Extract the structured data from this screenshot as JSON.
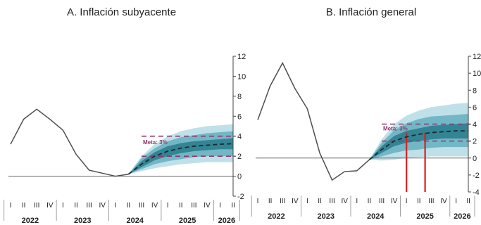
{
  "chart_data": [
    {
      "type": "line",
      "title": "A. Inflación subyacente",
      "y_ticks": [
        12,
        10,
        8,
        6,
        4,
        2,
        0,
        -2
      ],
      "ylim": [
        -2,
        12
      ],
      "quarter_labels": [
        "I",
        "II",
        "III",
        "IV",
        "I",
        "II",
        "III",
        "IV",
        "I",
        "II",
        "III",
        "IV",
        "I",
        "II",
        "III",
        "IV",
        "I",
        "II"
      ],
      "year_labels": [
        "2022",
        "2023",
        "2024",
        "2025",
        "2026"
      ],
      "target_label": "Meta: 3%",
      "target": 3,
      "target_band": [
        2,
        4
      ],
      "history": {
        "x": [
          0,
          1,
          2,
          3,
          4,
          5,
          6,
          7,
          8,
          9
        ],
        "y": [
          3.2,
          5.7,
          6.7,
          5.7,
          4.6,
          2.2,
          0.6,
          0.3,
          0.0,
          0.2
        ]
      },
      "forecast": {
        "x": [
          9,
          10,
          11,
          12,
          13,
          14,
          15,
          16,
          17
        ],
        "y": [
          0.2,
          1.2,
          2.0,
          2.5,
          2.8,
          3.0,
          3.1,
          3.2,
          3.25
        ]
      },
      "fan_bands": [
        {
          "lower": [
            0.2,
            0.9,
            1.6,
            2.0,
            2.3,
            2.5,
            2.6,
            2.7,
            2.7
          ],
          "upper": [
            0.2,
            1.5,
            2.4,
            3.0,
            3.3,
            3.5,
            3.6,
            3.7,
            3.8
          ]
        },
        {
          "lower": [
            0.2,
            0.7,
            1.2,
            1.5,
            1.7,
            1.9,
            2.0,
            2.0,
            2.0
          ],
          "upper": [
            0.2,
            1.8,
            2.8,
            3.5,
            3.9,
            4.1,
            4.3,
            4.4,
            4.5
          ]
        },
        {
          "lower": [
            0.2,
            0.5,
            0.8,
            1.0,
            1.2,
            1.3,
            1.4,
            1.4,
            1.4
          ],
          "upper": [
            0.2,
            2.0,
            3.2,
            4.0,
            4.5,
            4.8,
            5.0,
            5.1,
            5.2
          ]
        }
      ],
      "colors": {
        "history": "#4d4d4d",
        "forecast": "#1d2a2e",
        "target": "#8b3a6b",
        "fan": [
          "#2c7f8f",
          "#6ab2c2",
          "#b8dde6"
        ]
      }
    },
    {
      "type": "line",
      "title": "B. Inflación general",
      "y_ticks": [
        12,
        10,
        8,
        6,
        4,
        2,
        0,
        -2,
        -4
      ],
      "ylim": [
        -4,
        12
      ],
      "quarter_labels": [
        "I",
        "II",
        "III",
        "IV",
        "I",
        "II",
        "III",
        "IV",
        "I",
        "II",
        "III",
        "IV",
        "I",
        "II",
        "III",
        "IV",
        "I",
        "II"
      ],
      "year_labels": [
        "2022",
        "2023",
        "2024",
        "2025",
        "2026"
      ],
      "target_label": "Meta: 3%",
      "target": 3,
      "target_band": [
        2,
        4
      ],
      "history": {
        "x": [
          0,
          1,
          2,
          3,
          4,
          5,
          6,
          7,
          8,
          9
        ],
        "y": [
          4.5,
          8.5,
          11.2,
          8.2,
          5.8,
          0.6,
          -2.6,
          -1.6,
          -1.5,
          -0.2
        ]
      },
      "forecast": {
        "x": [
          9,
          10,
          11,
          12,
          13,
          14,
          15,
          16,
          17
        ],
        "y": [
          -0.2,
          1.0,
          2.0,
          2.5,
          2.8,
          3.0,
          3.1,
          3.2,
          3.2
        ]
      },
      "fan_bands": [
        {
          "lower": [
            -0.2,
            0.6,
            1.4,
            1.8,
            2.0,
            2.2,
            2.3,
            2.3,
            2.3
          ],
          "upper": [
            -0.2,
            1.4,
            2.6,
            3.2,
            3.5,
            3.8,
            3.9,
            4.0,
            4.1
          ]
        },
        {
          "lower": [
            -0.2,
            0.2,
            0.6,
            0.9,
            1.0,
            1.2,
            1.3,
            1.3,
            1.3
          ],
          "upper": [
            -0.2,
            1.8,
            3.3,
            4.1,
            4.6,
            4.9,
            5.0,
            5.1,
            5.2
          ]
        },
        {
          "lower": [
            -0.2,
            -0.3,
            -0.2,
            0.0,
            0.1,
            0.2,
            0.2,
            0.2,
            0.2
          ],
          "upper": [
            -0.2,
            2.2,
            4.0,
            5.0,
            5.6,
            6.0,
            6.2,
            6.4,
            6.5
          ]
        }
      ],
      "vertical_markers": [
        12,
        13.5
      ],
      "colors": {
        "history": "#4d4d4d",
        "forecast": "#1d2a2e",
        "target": "#8b3a6b",
        "fan": [
          "#2c7f8f",
          "#6ab2c2",
          "#b8dde6"
        ],
        "markers": "#d42020"
      }
    }
  ]
}
